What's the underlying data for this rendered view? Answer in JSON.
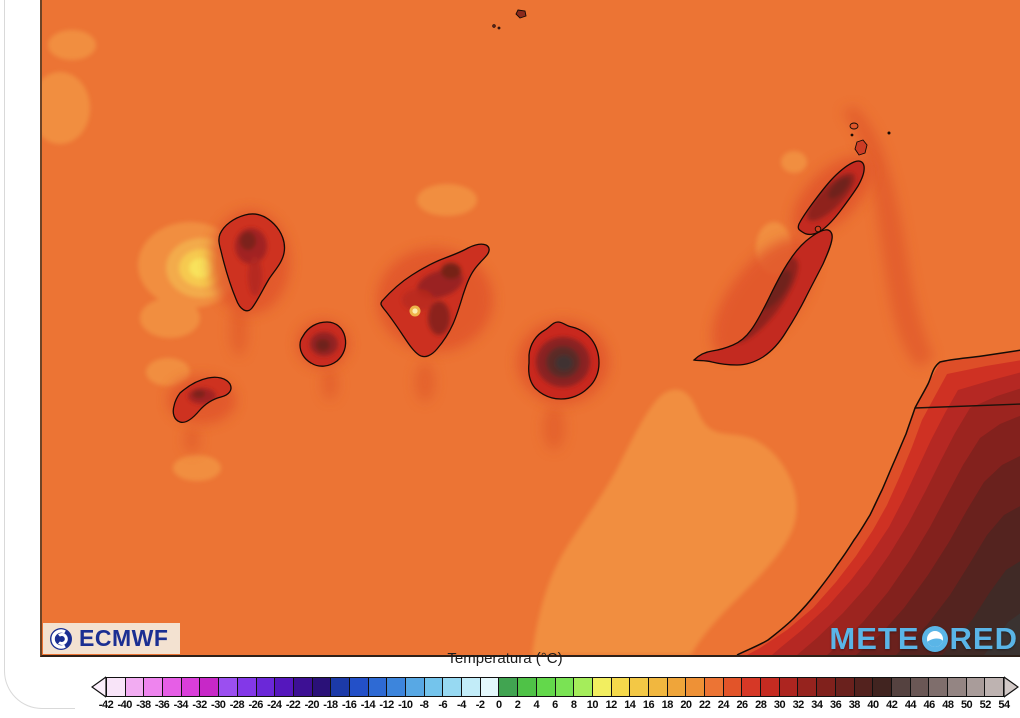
{
  "map": {
    "ocean_color": "#ec7434",
    "logos": {
      "ecmwf": "ECMWF",
      "meteored_left": "METE",
      "meteored_right": "RED"
    }
  },
  "legend": {
    "title": "Temperatura (°C)",
    "unit": "°C",
    "ticks": [
      "-42",
      "-40",
      "-38",
      "-36",
      "-34",
      "-32",
      "-30",
      "-28",
      "-26",
      "-24",
      "-22",
      "-20",
      "-18",
      "-16",
      "-14",
      "-12",
      "-10",
      "-8",
      "-6",
      "-4",
      "-2",
      "0",
      "2",
      "4",
      "6",
      "8",
      "10",
      "12",
      "14",
      "16",
      "18",
      "20",
      "22",
      "24",
      "26",
      "28",
      "30",
      "32",
      "34",
      "36",
      "38",
      "40",
      "42",
      "44",
      "46",
      "48",
      "50",
      "52",
      "54"
    ],
    "cell_colors": [
      "#f8e4f8",
      "#f2acf2",
      "#ee84ee",
      "#e65ee6",
      "#da3eda",
      "#c728c7",
      "#9b4ff0",
      "#8338e8",
      "#6b28d8",
      "#5517bd",
      "#3d1094",
      "#2a1178",
      "#1c3aa8",
      "#2350c8",
      "#2e6ad4",
      "#3d85dc",
      "#58a8e4",
      "#74c4ec",
      "#97d9f2",
      "#c2ecf8",
      "#e4f8fc",
      "#41a451",
      "#4fc247",
      "#63d84b",
      "#7ae354",
      "#a5ed5b",
      "#f2ee60",
      "#f5d94b",
      "#f3c845",
      "#f1b73f",
      "#efa53a",
      "#ee9136",
      "#ec7434",
      "#e25429",
      "#d63826",
      "#c52b21",
      "#ad2520",
      "#96231e",
      "#80211c",
      "#6a211d",
      "#53221e",
      "#412420",
      "#554240",
      "#6a5755",
      "#7f6e6c",
      "#948583",
      "#a99c9a",
      "#beb3b1"
    ],
    "arrow_left_color": "#fcf0fc",
    "arrow_right_color": "#d2c9c7"
  }
}
